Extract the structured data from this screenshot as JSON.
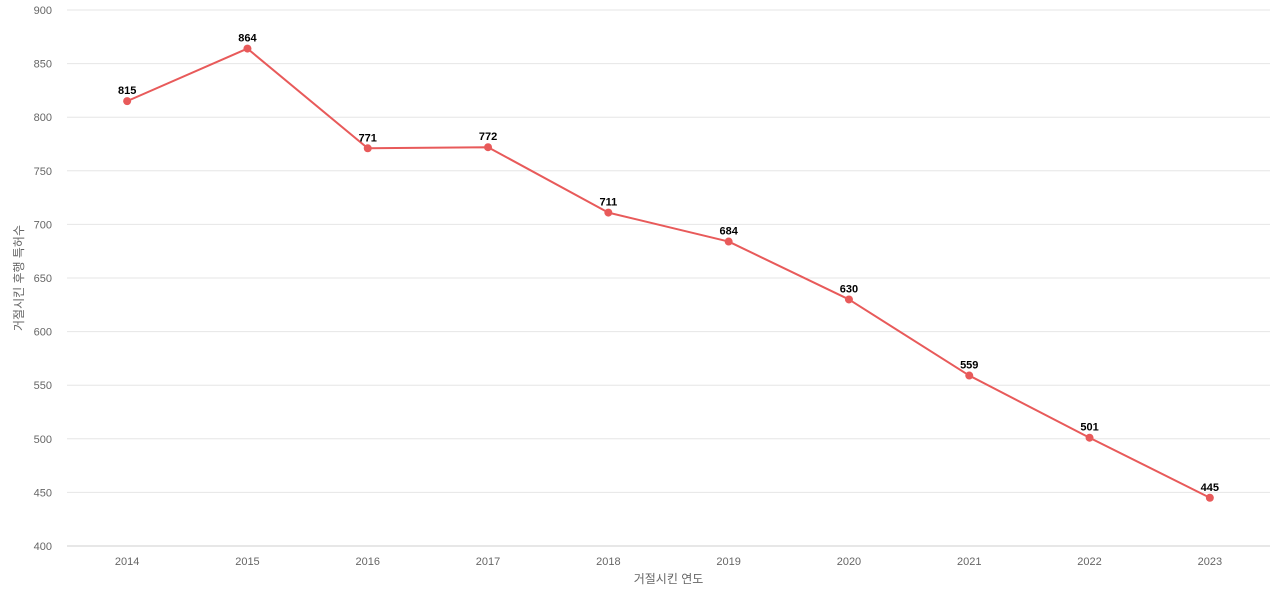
{
  "chart_data": {
    "type": "line",
    "title": "",
    "xlabel": "거절시킨 연도",
    "ylabel": "거절시킨 후행 특허수",
    "categories": [
      "2014",
      "2015",
      "2016",
      "2017",
      "2018",
      "2019",
      "2020",
      "2021",
      "2022",
      "2023"
    ],
    "series": [
      {
        "values": [
          815,
          864,
          771,
          772,
          711,
          684,
          630,
          559,
          501,
          445
        ],
        "color": "#e85a5a"
      }
    ],
    "ylim": [
      400,
      900
    ],
    "yticks": [
      "400",
      "450",
      "500",
      "550",
      "600",
      "650",
      "700",
      "750",
      "800",
      "850",
      "900"
    ],
    "grid": true,
    "legend": "none",
    "data_labels": true
  }
}
